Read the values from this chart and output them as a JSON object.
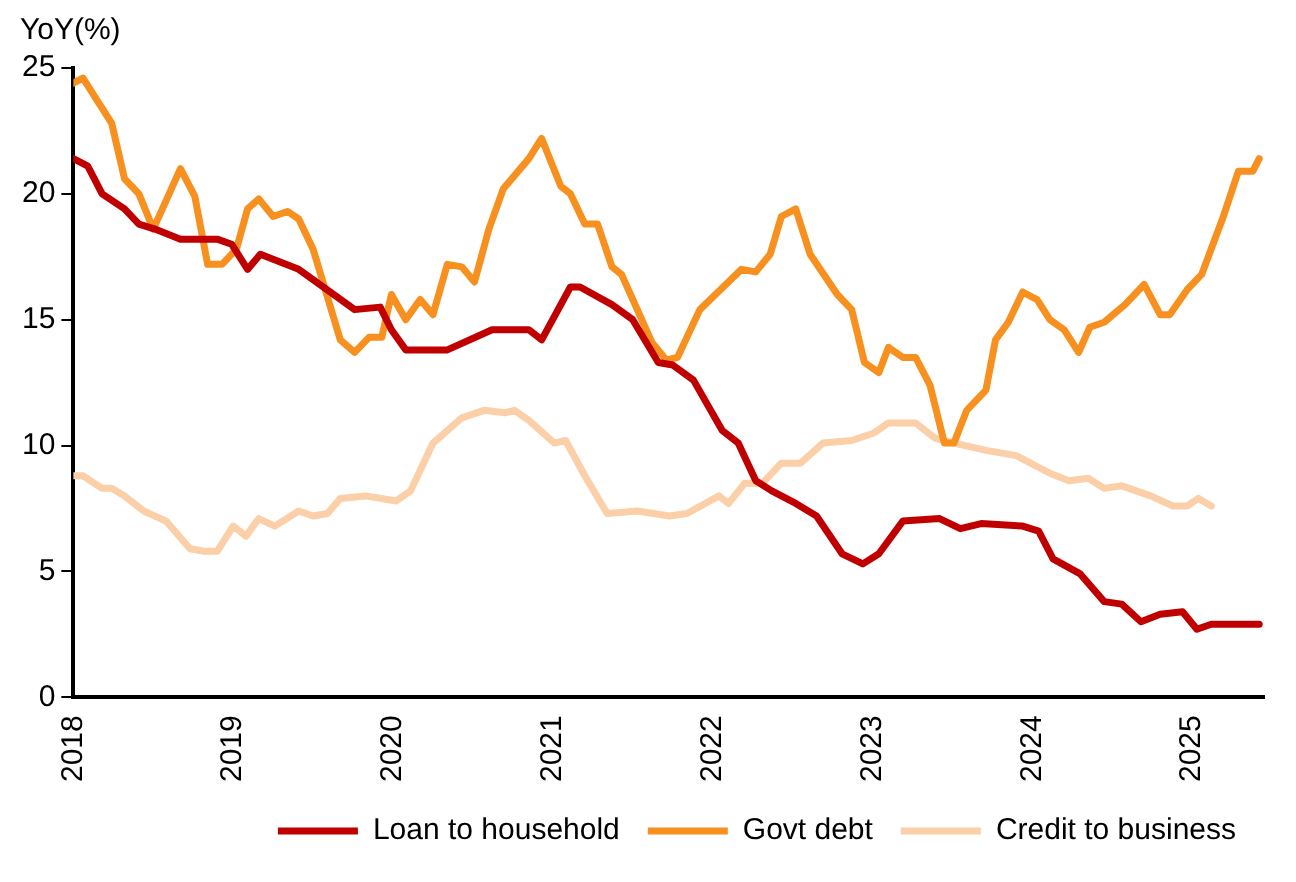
{
  "chart_data": {
    "type": "line",
    "ylabel": "YoY(%)",
    "xlim": [
      2018,
      2025.45
    ],
    "xticks": [
      2018,
      2019,
      2020,
      2021,
      2022,
      2023,
      2024,
      2025
    ],
    "ylim": [
      0,
      25
    ],
    "yticks": [
      0,
      5,
      10,
      15,
      20,
      25
    ],
    "grid": false,
    "legend": "bottom",
    "marker": "none",
    "line_style": "solid",
    "series": [
      {
        "name": "Loan to household",
        "color": "#c00000",
        "x": [
          2018.0,
          2018.09,
          2018.18,
          2018.32,
          2018.41,
          2018.51,
          2018.67,
          2018.8,
          2018.9,
          2018.99,
          2019.09,
          2019.17,
          2019.41,
          2019.63,
          2019.76,
          2019.92,
          2019.99,
          2020.08,
          2020.34,
          2020.62,
          2020.85,
          2020.93,
          2021.11,
          2021.17,
          2021.37,
          2021.5,
          2021.66,
          2021.75,
          2021.88,
          2022.06,
          2022.16,
          2022.27,
          2022.37,
          2022.52,
          2022.65,
          2022.81,
          2022.94,
          2023.04,
          2023.19,
          2023.42,
          2023.55,
          2023.68,
          2023.94,
          2024.04,
          2024.13,
          2024.3,
          2024.45,
          2024.56,
          2024.68,
          2024.8,
          2024.94,
          2025.03,
          2025.12,
          2025.42
        ],
        "values": [
          21.4,
          21.1,
          20.0,
          19.4,
          18.8,
          18.6,
          18.2,
          18.2,
          18.2,
          18.0,
          17.0,
          17.6,
          17.0,
          16.0,
          15.4,
          15.5,
          14.6,
          13.8,
          13.8,
          14.6,
          14.6,
          14.2,
          16.3,
          16.3,
          15.6,
          15.0,
          13.3,
          13.2,
          12.6,
          10.6,
          10.1,
          8.6,
          8.2,
          7.7,
          7.2,
          5.7,
          5.3,
          5.7,
          7.0,
          7.1,
          6.7,
          6.9,
          6.8,
          6.6,
          5.5,
          4.9,
          3.8,
          3.7,
          3.0,
          3.3,
          3.4,
          2.7,
          2.9,
          2.9
        ]
      },
      {
        "name": "Govt debt",
        "color": "#f7901e",
        "x": [
          2018.0,
          2018.06,
          2018.24,
          2018.32,
          2018.41,
          2018.5,
          2018.67,
          2018.76,
          2018.84,
          2018.93,
          2019.02,
          2019.09,
          2019.16,
          2019.25,
          2019.34,
          2019.41,
          2019.5,
          2019.67,
          2019.76,
          2019.85,
          2019.93,
          2019.99,
          2020.08,
          2020.17,
          2020.25,
          2020.34,
          2020.43,
          2020.51,
          2020.6,
          2020.69,
          2020.85,
          2020.93,
          2021.05,
          2021.11,
          2021.2,
          2021.28,
          2021.37,
          2021.43,
          2021.62,
          2021.71,
          2021.78,
          2021.92,
          2022.05,
          2022.18,
          2022.27,
          2022.36,
          2022.43,
          2022.52,
          2022.61,
          2022.78,
          2022.87,
          2022.95,
          2023.04,
          2023.1,
          2023.19,
          2023.27,
          2023.36,
          2023.45,
          2023.51,
          2023.59,
          2023.71,
          2023.77,
          2023.85,
          2023.94,
          2024.03,
          2024.11,
          2024.2,
          2024.29,
          2024.36,
          2024.45,
          2024.58,
          2024.7,
          2024.8,
          2024.86,
          2024.97,
          2025.06,
          2025.19,
          2025.29,
          2025.38,
          2025.42
        ],
        "values": [
          24.4,
          24.6,
          22.8,
          20.6,
          20.0,
          18.6,
          21.0,
          19.9,
          17.2,
          17.2,
          17.8,
          19.4,
          19.8,
          19.1,
          19.3,
          19.0,
          17.8,
          14.2,
          13.7,
          14.3,
          14.3,
          16.0,
          15.0,
          15.8,
          15.2,
          17.2,
          17.1,
          16.5,
          18.6,
          20.2,
          21.4,
          22.2,
          20.3,
          20.0,
          18.8,
          18.8,
          17.1,
          16.8,
          14.1,
          13.4,
          13.5,
          15.4,
          16.2,
          17.0,
          16.9,
          17.6,
          19.1,
          19.4,
          17.6,
          16.0,
          15.4,
          13.3,
          12.9,
          13.9,
          13.5,
          13.5,
          12.4,
          10.1,
          10.1,
          11.4,
          12.2,
          14.2,
          14.9,
          16.1,
          15.8,
          15.0,
          14.6,
          13.7,
          14.7,
          14.9,
          15.6,
          16.4,
          15.2,
          15.2,
          16.2,
          16.8,
          19.0,
          20.9,
          20.9,
          21.4
        ]
      },
      {
        "name": "Credit to business",
        "color": "#fbcfa8",
        "x": [
          2018.0,
          2018.06,
          2018.18,
          2018.24,
          2018.32,
          2018.44,
          2018.58,
          2018.73,
          2018.82,
          2018.9,
          2019.0,
          2019.08,
          2019.16,
          2019.26,
          2019.41,
          2019.5,
          2019.59,
          2019.67,
          2019.83,
          2020.02,
          2020.11,
          2020.25,
          2020.43,
          2020.57,
          2020.7,
          2020.76,
          2020.85,
          2021.01,
          2021.08,
          2021.2,
          2021.34,
          2021.53,
          2021.73,
          2021.84,
          2022.04,
          2022.1,
          2022.2,
          2022.31,
          2022.43,
          2022.55,
          2022.69,
          2022.87,
          2023.01,
          2023.1,
          2023.27,
          2023.39,
          2023.51,
          2023.72,
          2023.9,
          2024.11,
          2024.23,
          2024.35,
          2024.45,
          2024.56,
          2024.74,
          2024.88,
          2024.97,
          2025.04,
          2025.12
        ],
        "values": [
          8.8,
          8.8,
          8.3,
          8.3,
          8.0,
          7.4,
          7.0,
          5.9,
          5.8,
          5.8,
          6.8,
          6.4,
          7.1,
          6.8,
          7.4,
          7.2,
          7.3,
          7.9,
          8.0,
          7.8,
          8.2,
          10.1,
          11.1,
          11.4,
          11.3,
          11.4,
          11.0,
          10.1,
          10.2,
          8.8,
          7.3,
          7.4,
          7.2,
          7.3,
          8.0,
          7.7,
          8.5,
          8.5,
          9.3,
          9.3,
          10.1,
          10.2,
          10.5,
          10.9,
          10.9,
          10.3,
          10.1,
          9.8,
          9.6,
          8.9,
          8.6,
          8.7,
          8.3,
          8.4,
          8.0,
          7.6,
          7.6,
          7.9,
          7.6
        ]
      }
    ]
  }
}
